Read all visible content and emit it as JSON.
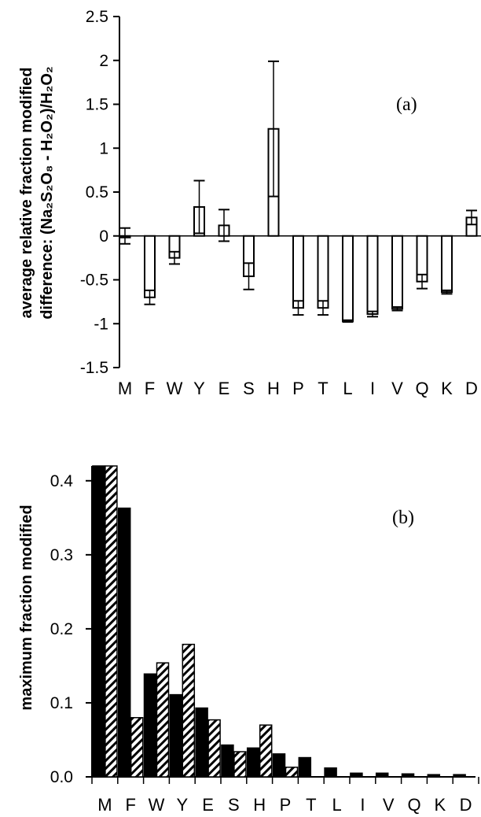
{
  "chart_data": [
    {
      "type": "bar",
      "panel_label": "(a)",
      "ylabel_line1": "average relative fraction modified",
      "ylabel_line2": "difference: (Na₂S₂O₈ - H₂O₂)/H₂O₂",
      "ylim": [
        -1.5,
        2.5
      ],
      "yticks": [
        "2.5",
        "2",
        "1.5",
        "1",
        "0.5",
        "0",
        "-0.5",
        "-1",
        "-1.5"
      ],
      "categories": [
        "M",
        "F",
        "W",
        "Y",
        "E",
        "S",
        "H",
        "P",
        "T",
        "L",
        "I",
        "V",
        "Q",
        "K",
        "D"
      ],
      "series": [
        {
          "values": [
            0.0,
            -0.7,
            -0.25,
            0.33,
            0.12,
            -0.46,
            1.22,
            -0.82,
            -0.82,
            -0.97,
            -0.89,
            -0.83,
            -0.52,
            -0.64,
            0.21
          ],
          "error": [
            0.09,
            0.08,
            0.07,
            0.3,
            0.18,
            0.15,
            0.77,
            0.08,
            0.08,
            0.01,
            0.03,
            0.02,
            0.08,
            0.02,
            0.08
          ]
        }
      ],
      "bar_color": "#ffffff",
      "grid": false
    },
    {
      "type": "bar",
      "panel_label": "(b)",
      "ylabel": "maximum fraction modified",
      "ylim": [
        0,
        0.42
      ],
      "yticks": [
        "0.4",
        "0.3",
        "0.2",
        "0.1",
        "0.0"
      ],
      "categories": [
        "M",
        "F",
        "W",
        "Y",
        "E",
        "S",
        "H",
        "P",
        "T",
        "L",
        "I",
        "V",
        "Q",
        "K",
        "D"
      ],
      "series": [
        {
          "values": [
            0.42,
            0.363,
            0.139,
            0.111,
            0.093,
            0.043,
            0.039,
            0.031,
            0.026,
            0.012,
            0.005,
            0.005,
            0.004,
            0.003,
            0.003
          ],
          "color": "#000000",
          "pattern": "solid"
        },
        {
          "values": [
            0.42,
            0.08,
            0.154,
            0.179,
            0.077,
            0.034,
            0.07,
            0.013,
            0.0,
            0.0,
            0.0,
            0.0,
            0.0,
            0.0,
            0.0
          ],
          "color": "#000000",
          "pattern": "hatched"
        }
      ],
      "grid": false
    }
  ]
}
